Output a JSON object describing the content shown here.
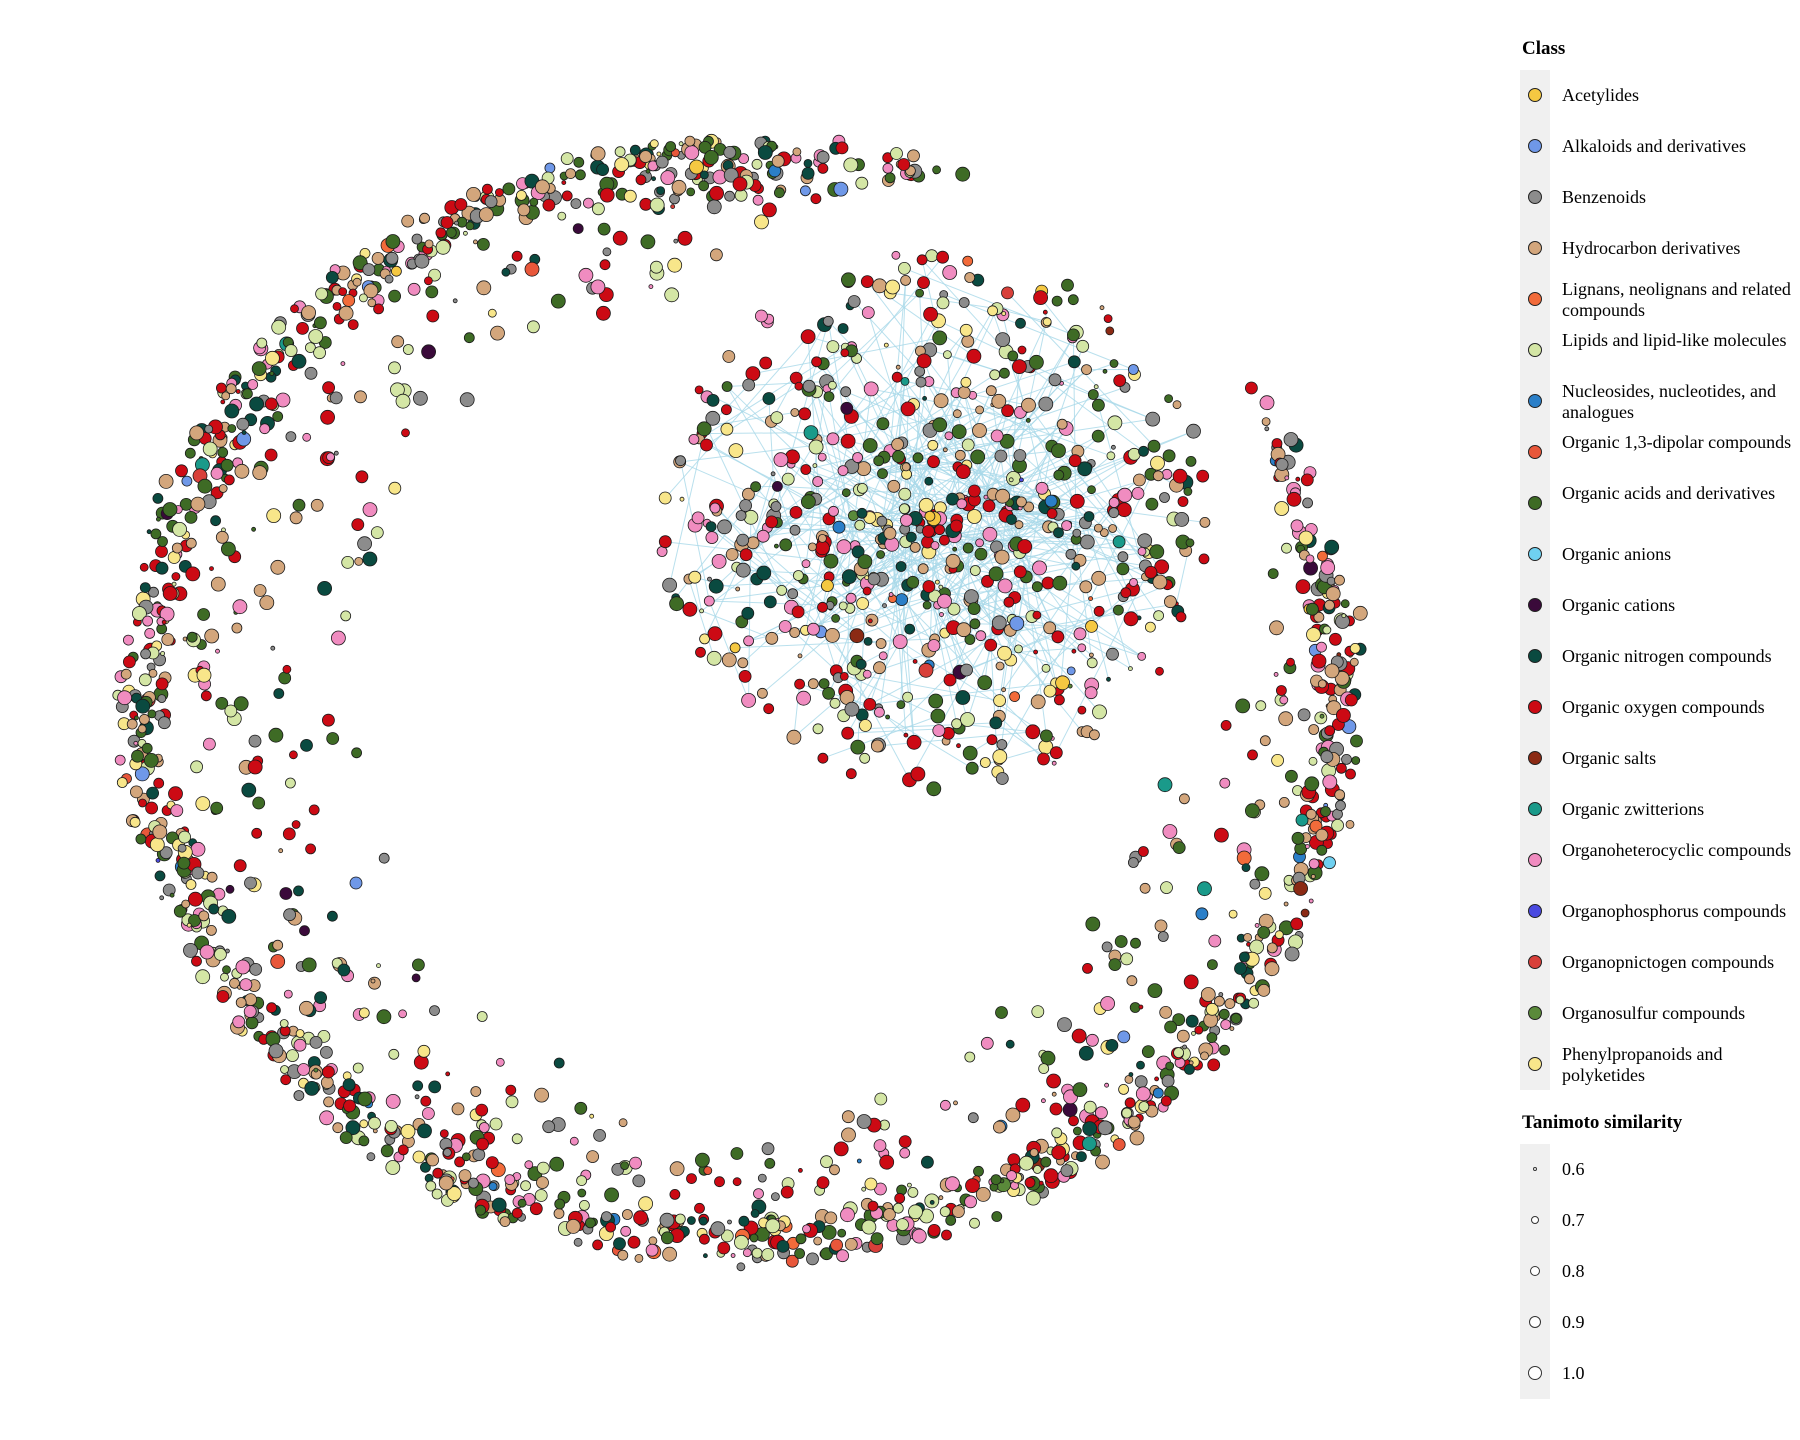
{
  "legend": {
    "class_title": "Class",
    "classes": [
      {
        "label": "Acetylides",
        "color": "#f5c842"
      },
      {
        "label": "Alkaloids and derivatives",
        "color": "#6f98e8"
      },
      {
        "label": "Benzenoids",
        "color": "#8c8c8c"
      },
      {
        "label": "Hydrocarbon derivatives",
        "color": "#d3a67c"
      },
      {
        "label": "Lignans, neolignans and related compounds",
        "color": "#f26b3a"
      },
      {
        "label": "Lipids and lipid-like molecules",
        "color": "#d4e6a5"
      },
      {
        "label": "Nucleosides, nucleotides, and analogues",
        "color": "#2b7fc8"
      },
      {
        "label": "Organic 1,3-dipolar compounds",
        "color": "#e8573a"
      },
      {
        "label": "Organic acids and derivatives",
        "color": "#3e6b25"
      },
      {
        "label": "Organic anions",
        "color": "#6fd0f0"
      },
      {
        "label": "Organic cations",
        "color": "#3a0a3a"
      },
      {
        "label": "Organic nitrogen compounds",
        "color": "#0a4a40"
      },
      {
        "label": "Organic oxygen compounds",
        "color": "#cc0a14"
      },
      {
        "label": "Organic salts",
        "color": "#8b2a14"
      },
      {
        "label": "Organic zwitterions",
        "color": "#1a9a8a"
      },
      {
        "label": "Organoheterocyclic compounds",
        "color": "#f08cc0"
      },
      {
        "label": "Organophosphorus compounds",
        "color": "#4a4ae0"
      },
      {
        "label": "Organopnictogen compounds",
        "color": "#d8403a"
      },
      {
        "label": "Organosulfur compounds",
        "color": "#5a8a3a"
      },
      {
        "label": "Phenylpropanoids and polyketides",
        "color": "#f8e68a"
      }
    ],
    "size_title": "Tanimoto similarity",
    "sizes": [
      "0.6",
      "0.7",
      "0.8",
      "0.9",
      "1.0"
    ]
  },
  "edge_color": "#a8d8e8"
}
